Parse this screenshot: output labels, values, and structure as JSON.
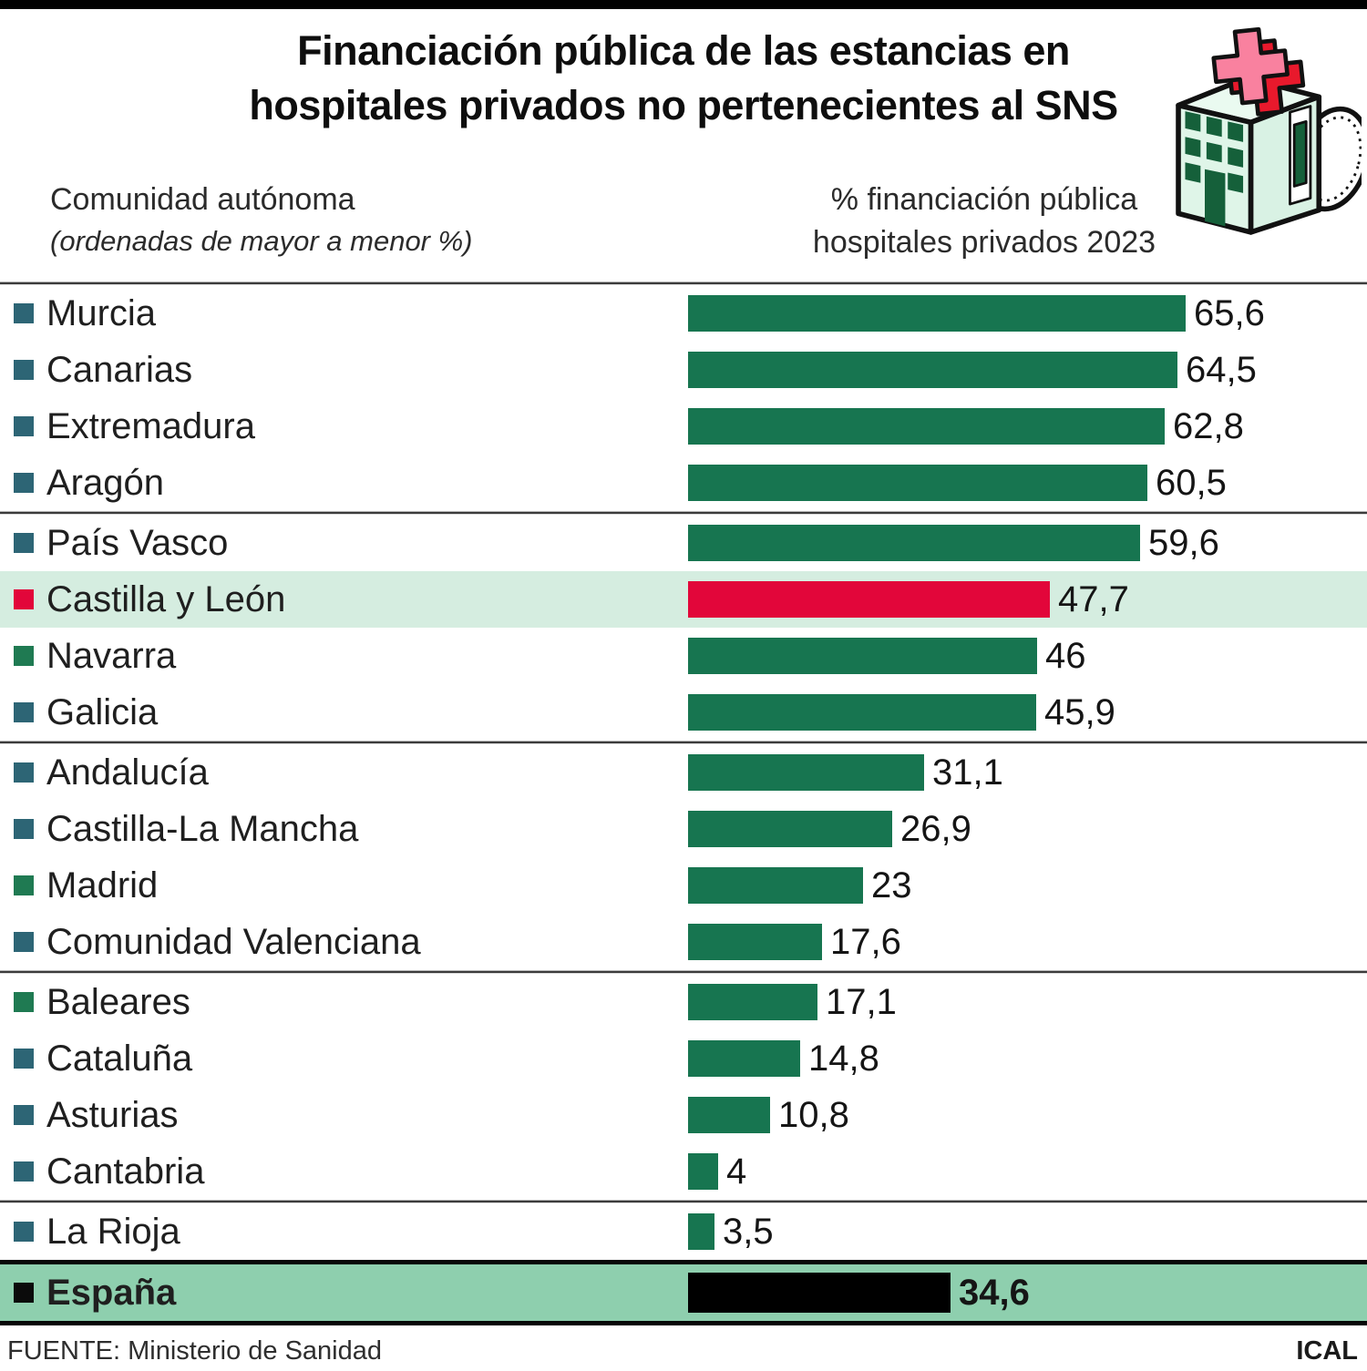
{
  "page": {
    "title_line1": "Financiación pública de las estancias en",
    "title_line2": "hospitales privados no pertenecientes al SNS",
    "source_label": "FUENTE: Ministerio de Sanidad",
    "credit": "ICAL"
  },
  "columns": {
    "left_title": "Comunidad autónoma",
    "left_subtitle": "(ordenadas de mayor a menor %)",
    "right_title_line1": "% financiación pública",
    "right_title_line2": "hospitales privados 2023"
  },
  "icon": {
    "name": "hospital-building-with-coin-icon"
  },
  "colors": {
    "bullet": {
      "teal": "#2d6575",
      "green": "#1f7a52",
      "red": "#e2063a",
      "black": "#0b0b0b"
    },
    "bar": {
      "green": "#177550",
      "red": "#e2063a",
      "black": "#000000"
    },
    "highlight_row_bg": "#d5ede0",
    "spain_row_bg": "#8ecfae",
    "topbar": "#000000"
  },
  "chart_data": {
    "type": "bar",
    "orientation": "horizontal",
    "title": "Financiación pública de las estancias en hospitales privados no pertenecientes al SNS",
    "unit": "%",
    "xlim": [
      0,
      70
    ],
    "legend": "none",
    "grid": false,
    "rows": [
      {
        "label": "Murcia",
        "value": "65,6",
        "value_num": 65.6,
        "bullet": "teal",
        "bar": "green",
        "style": "default",
        "divider_after": false
      },
      {
        "label": "Canarias",
        "value": "64,5",
        "value_num": 64.5,
        "bullet": "teal",
        "bar": "green",
        "style": "default",
        "divider_after": false
      },
      {
        "label": "Extremadura",
        "value": "62,8",
        "value_num": 62.8,
        "bullet": "teal",
        "bar": "green",
        "style": "default",
        "divider_after": false
      },
      {
        "label": "Aragón",
        "value": "60,5",
        "value_num": 60.5,
        "bullet": "teal",
        "bar": "green",
        "style": "default",
        "divider_after": true
      },
      {
        "label": "País Vasco",
        "value": "59,6",
        "value_num": 59.6,
        "bullet": "teal",
        "bar": "green",
        "style": "default",
        "divider_after": false
      },
      {
        "label": "Castilla y León",
        "value": "47,7",
        "value_num": 47.7,
        "bullet": "red",
        "bar": "red",
        "style": "highlight",
        "divider_after": false
      },
      {
        "label": "Navarra",
        "value": "46",
        "value_num": 46,
        "bullet": "green",
        "bar": "green",
        "style": "default",
        "divider_after": false
      },
      {
        "label": "Galicia",
        "value": "45,9",
        "value_num": 45.9,
        "bullet": "teal",
        "bar": "green",
        "style": "default",
        "divider_after": true
      },
      {
        "label": "Andalucía",
        "value": "31,1",
        "value_num": 31.1,
        "bullet": "teal",
        "bar": "green",
        "style": "default",
        "divider_after": false
      },
      {
        "label": "Castilla-La Mancha",
        "value": "26,9",
        "value_num": 26.9,
        "bullet": "teal",
        "bar": "green",
        "style": "default",
        "divider_after": false
      },
      {
        "label": "Madrid",
        "value": "23",
        "value_num": 23,
        "bullet": "green",
        "bar": "green",
        "style": "default",
        "divider_after": false
      },
      {
        "label": "Comunidad Valenciana",
        "value": "17,6",
        "value_num": 17.6,
        "bullet": "teal",
        "bar": "green",
        "style": "default",
        "divider_after": true
      },
      {
        "label": "Baleares",
        "value": "17,1",
        "value_num": 17.1,
        "bullet": "green",
        "bar": "green",
        "style": "default",
        "divider_after": false
      },
      {
        "label": "Cataluña",
        "value": "14,8",
        "value_num": 14.8,
        "bullet": "teal",
        "bar": "green",
        "style": "default",
        "divider_after": false
      },
      {
        "label": "Asturias",
        "value": "10,8",
        "value_num": 10.8,
        "bullet": "teal",
        "bar": "green",
        "style": "default",
        "divider_after": false
      },
      {
        "label": "Cantabria",
        "value": "4",
        "value_num": 4,
        "bullet": "teal",
        "bar": "green",
        "style": "default",
        "divider_after": true
      },
      {
        "label": "La Rioja",
        "value": "3,5",
        "value_num": 3.5,
        "bullet": "teal",
        "bar": "green",
        "style": "default",
        "divider_after": false
      },
      {
        "label": "España",
        "value": "34,6",
        "value_num": 34.6,
        "bullet": "black",
        "bar": "black",
        "style": "spain",
        "divider_after": false
      }
    ]
  }
}
